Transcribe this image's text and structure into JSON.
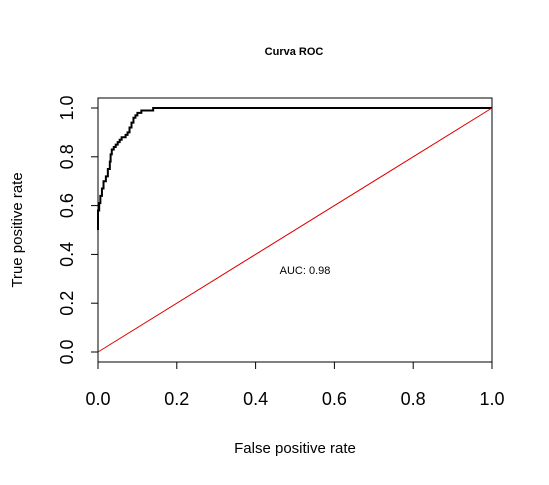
{
  "chart_data": {
    "type": "line",
    "title": "Curva ROC",
    "xlabel": "False positive rate",
    "ylabel": "True positive rate",
    "xlim": [
      0,
      1
    ],
    "ylim": [
      0,
      1
    ],
    "x_ticks": [
      "0.0",
      "0.2",
      "0.4",
      "0.6",
      "0.8",
      "1.0"
    ],
    "y_ticks": [
      "0.0",
      "0.2",
      "0.4",
      "0.6",
      "0.8",
      "1.0"
    ],
    "annotation": "AUC: 0.98",
    "series": [
      {
        "color": "#000000",
        "points": [
          [
            0.0,
            0.5
          ],
          [
            0.0,
            0.58
          ],
          [
            0.003,
            0.58
          ],
          [
            0.003,
            0.61
          ],
          [
            0.006,
            0.61
          ],
          [
            0.006,
            0.64
          ],
          [
            0.01,
            0.64
          ],
          [
            0.01,
            0.67
          ],
          [
            0.014,
            0.67
          ],
          [
            0.014,
            0.7
          ],
          [
            0.02,
            0.7
          ],
          [
            0.02,
            0.72
          ],
          [
            0.025,
            0.72
          ],
          [
            0.025,
            0.75
          ],
          [
            0.03,
            0.75
          ],
          [
            0.03,
            0.78
          ],
          [
            0.032,
            0.78
          ],
          [
            0.032,
            0.81
          ],
          [
            0.035,
            0.81
          ],
          [
            0.035,
            0.83
          ],
          [
            0.04,
            0.83
          ],
          [
            0.04,
            0.84
          ],
          [
            0.045,
            0.84
          ],
          [
            0.045,
            0.85
          ],
          [
            0.05,
            0.85
          ],
          [
            0.05,
            0.86
          ],
          [
            0.055,
            0.86
          ],
          [
            0.055,
            0.87
          ],
          [
            0.06,
            0.87
          ],
          [
            0.06,
            0.88
          ],
          [
            0.07,
            0.88
          ],
          [
            0.07,
            0.89
          ],
          [
            0.075,
            0.89
          ],
          [
            0.075,
            0.9
          ],
          [
            0.08,
            0.9
          ],
          [
            0.08,
            0.92
          ],
          [
            0.085,
            0.92
          ],
          [
            0.085,
            0.94
          ],
          [
            0.09,
            0.94
          ],
          [
            0.09,
            0.96
          ],
          [
            0.095,
            0.96
          ],
          [
            0.095,
            0.97
          ],
          [
            0.1,
            0.97
          ],
          [
            0.1,
            0.98
          ],
          [
            0.11,
            0.98
          ],
          [
            0.11,
            0.99
          ],
          [
            0.14,
            0.99
          ],
          [
            0.14,
            1.0
          ],
          [
            1.0,
            1.0
          ]
        ]
      },
      {
        "color": "#e00000",
        "points": [
          [
            0,
            0
          ],
          [
            1,
            1
          ]
        ]
      }
    ]
  }
}
